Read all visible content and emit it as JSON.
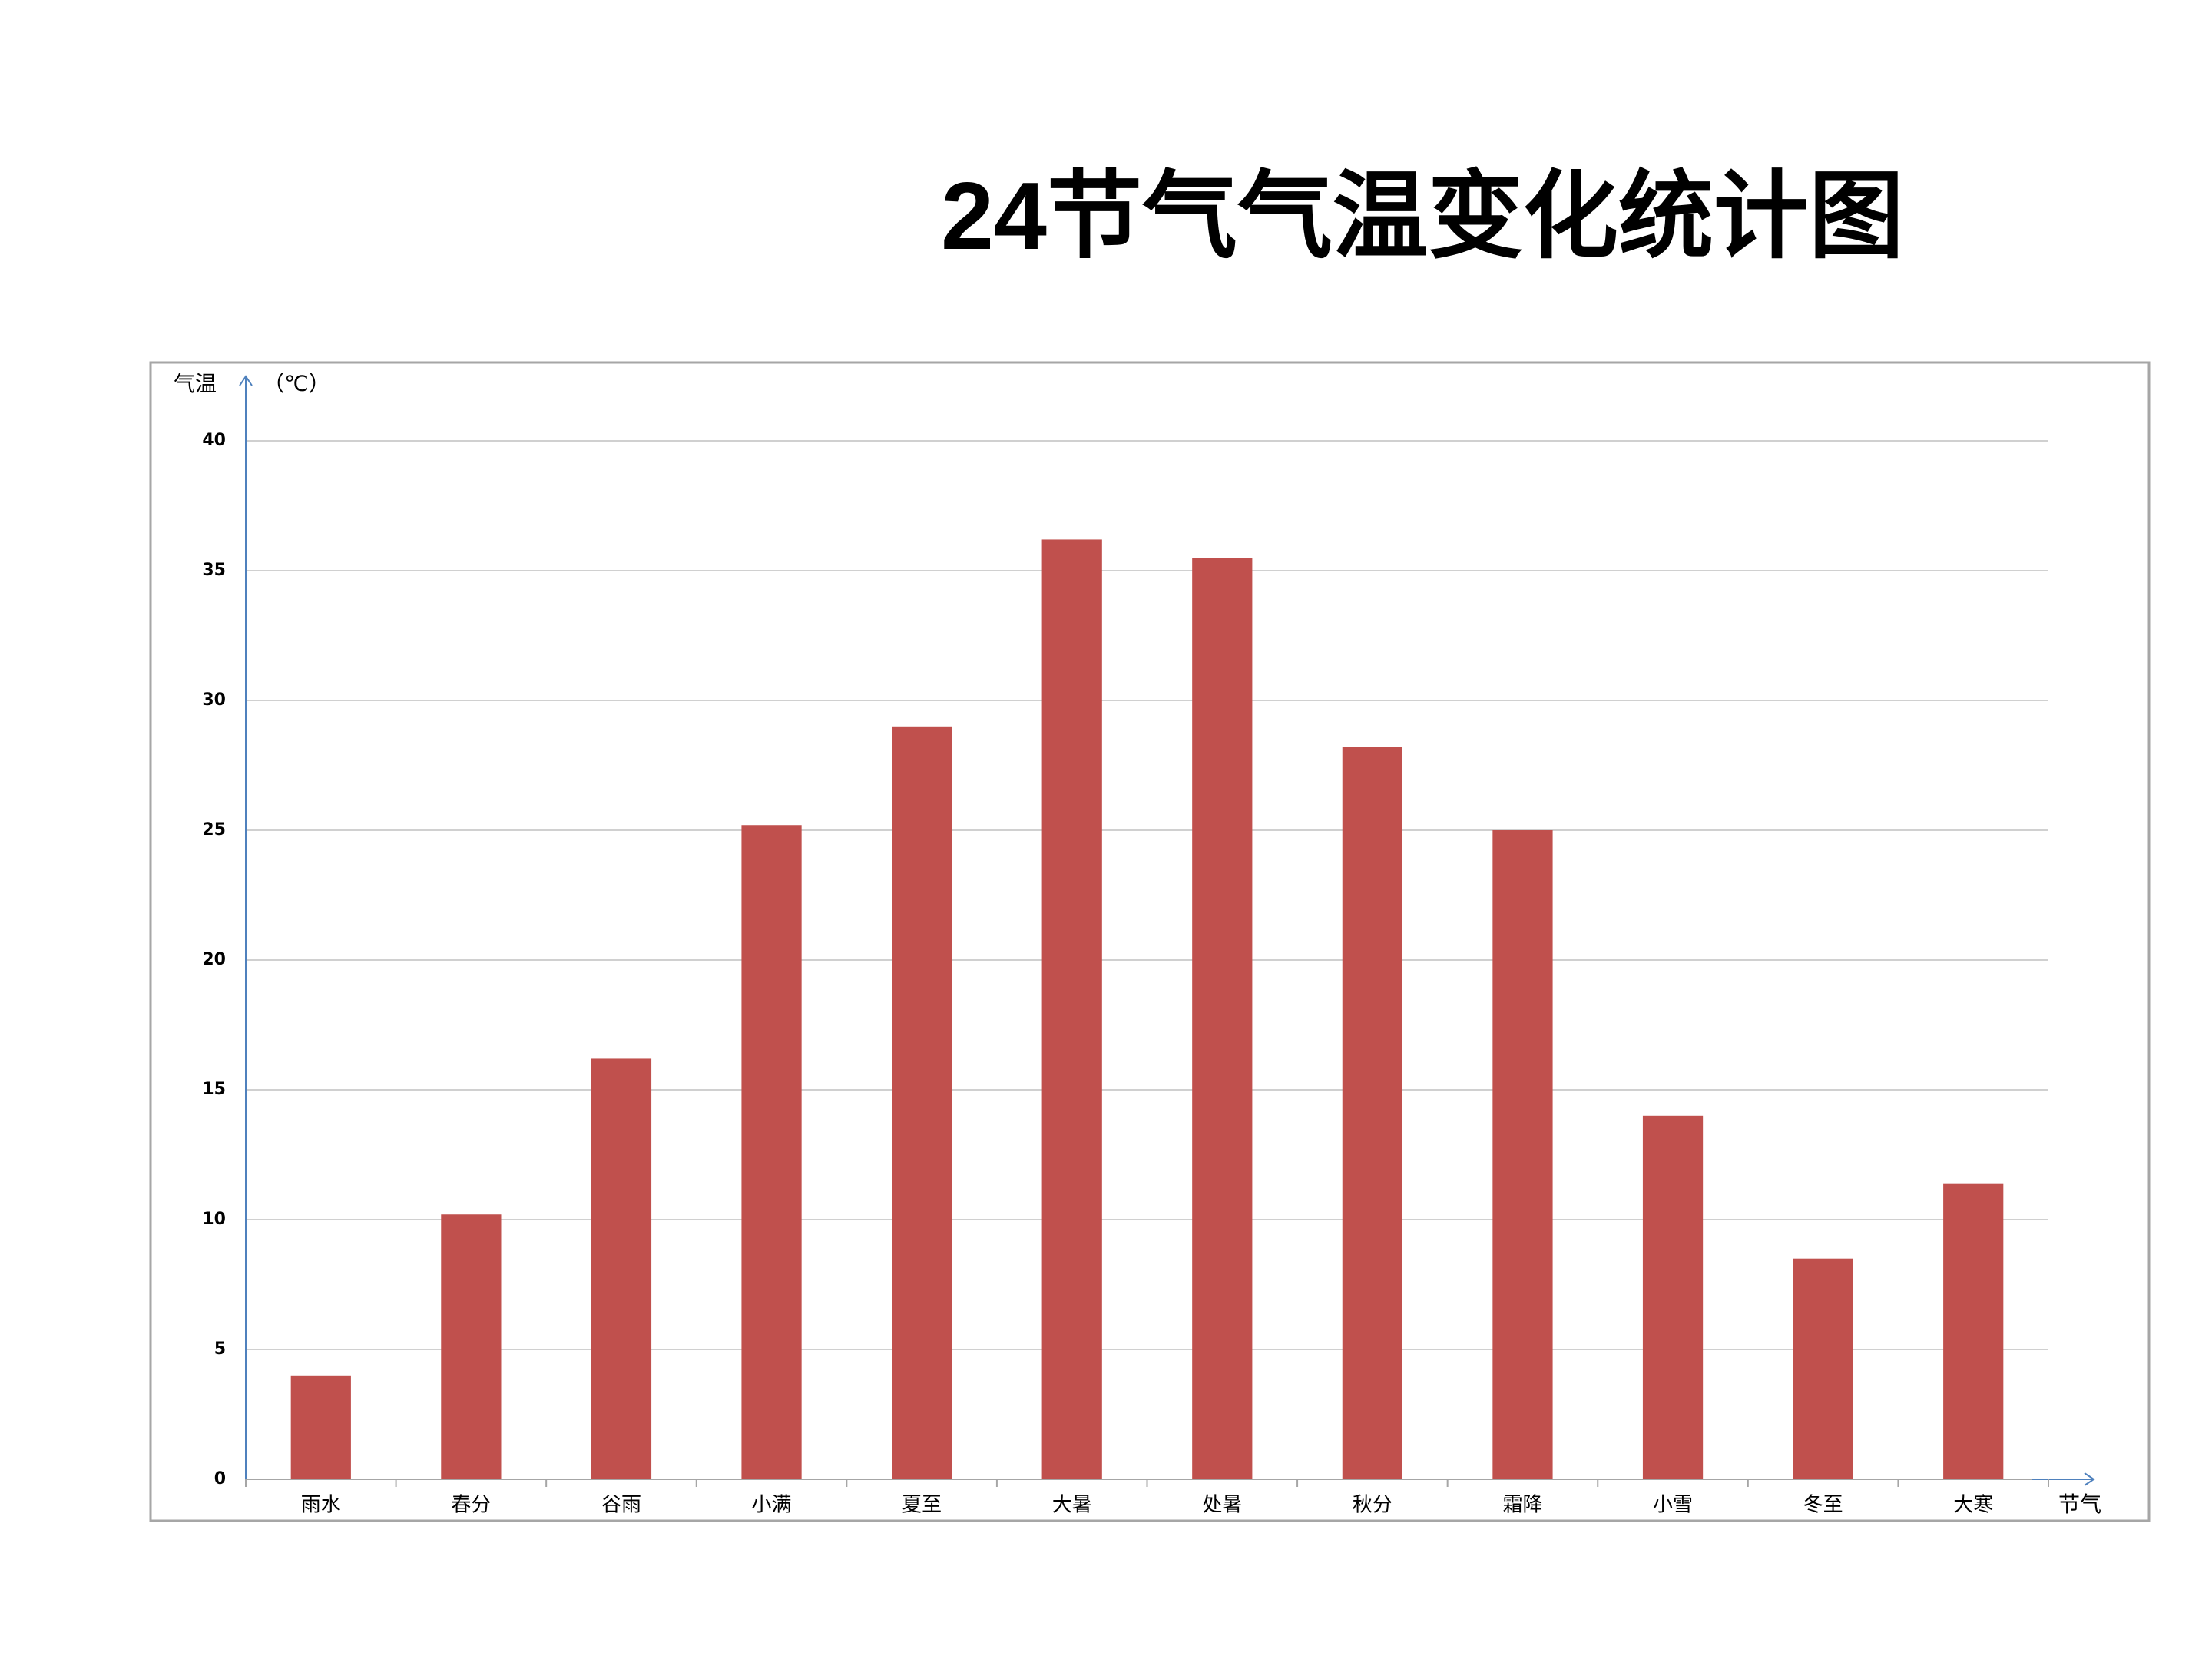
{
  "chart_data": {
    "type": "bar",
    "title": "24节气气温变化统计图",
    "y_label": "气温",
    "y_unit": "（℃）",
    "x_label": "节气",
    "categories": [
      "雨水",
      "春分",
      "谷雨",
      "小满",
      "夏至",
      "大暑",
      "处暑",
      "秋分",
      "霜降",
      "小雪",
      "冬至",
      "大寒"
    ],
    "values": [
      4.0,
      10.2,
      16.2,
      25.2,
      29.0,
      36.2,
      35.5,
      28.2,
      25.0,
      14.0,
      8.5,
      11.4
    ],
    "color": "#c0504d",
    "axis_color": "#4f81bd",
    "ylim": [
      0,
      40
    ],
    "yticks": [
      0,
      5,
      10,
      15,
      20,
      25,
      30,
      35,
      40
    ],
    "grid": true
  }
}
